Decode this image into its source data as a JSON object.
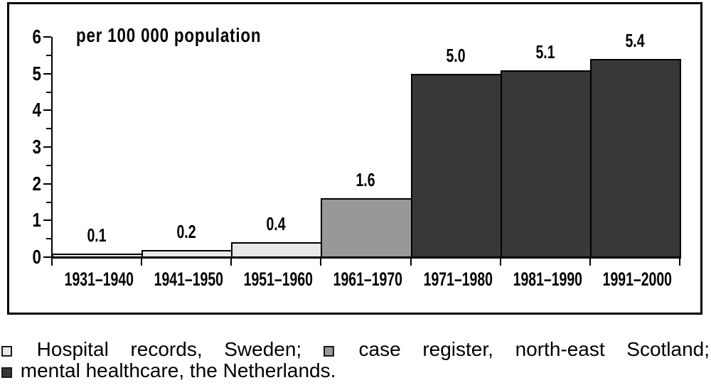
{
  "chart_data": {
    "type": "bar",
    "title": "per 100 000 population",
    "categories": [
      "1931–1940",
      "1941–1950",
      "1951–1960",
      "1961–1970",
      "1971–1980",
      "1981–1990",
      "1991–2000"
    ],
    "values": [
      0.1,
      0.2,
      0.4,
      1.6,
      5.0,
      5.1,
      5.4
    ],
    "value_labels": [
      "0.1",
      "0.2",
      "0.4",
      "1.6",
      "5.0",
      "5.1",
      "5.4"
    ],
    "bar_groups": [
      "sweden",
      "sweden",
      "sweden",
      "scotland",
      "netherlands",
      "netherlands",
      "netherlands"
    ],
    "ylim": [
      0,
      6
    ],
    "yticks": [
      "0",
      "1",
      "2",
      "3",
      "4",
      "5",
      "6"
    ],
    "minor_tick_step": 0.5,
    "grid": false,
    "legend_position": "below-left",
    "legend": [
      {
        "key": "sweden",
        "label": "Hospital records, Sweden;",
        "color": "#e8e8e8"
      },
      {
        "key": "scotland",
        "label": "case register, north-east Scotland;",
        "color": "#989898"
      },
      {
        "key": "netherlands",
        "label": "mental healthcare, the Netherlands.",
        "color": "#383838"
      }
    ],
    "colors": {
      "axis": "#000000",
      "frame": "#000000",
      "text": "#000000"
    }
  }
}
